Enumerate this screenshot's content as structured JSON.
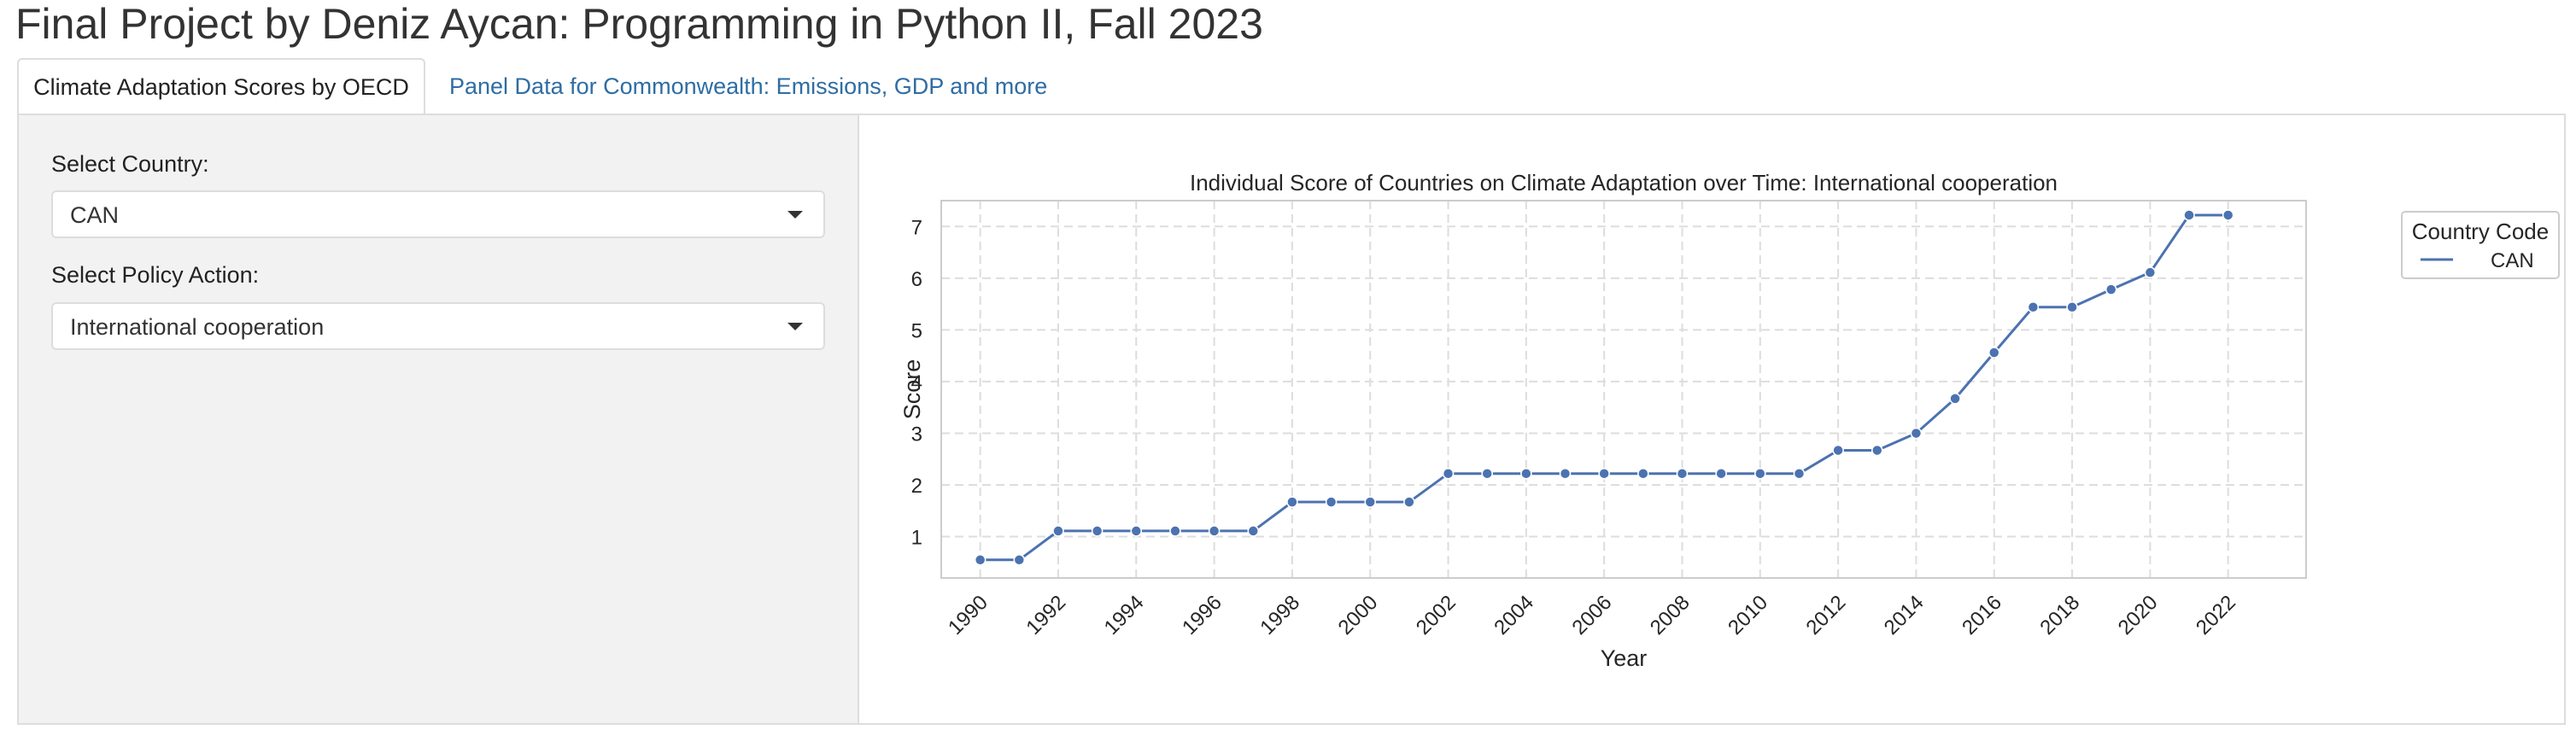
{
  "page": {
    "title": "Final Project by Deniz Aycan: Programming in Python II, Fall 2023"
  },
  "tabs": [
    {
      "label": "Climate Adaptation Scores by OECD",
      "active": true
    },
    {
      "label": "Panel Data for Commonwealth: Emissions, GDP and more",
      "active": false
    }
  ],
  "sidebar": {
    "country": {
      "label": "Select Country:",
      "value": "CAN"
    },
    "policy": {
      "label": "Select Policy Action:",
      "value": "International cooperation"
    }
  },
  "chart_data": {
    "type": "line",
    "title": "Individual Score of Countries on Climate Adaptation over Time: International cooperation",
    "xlabel": "Year",
    "ylabel": "Score",
    "xlim": [
      1989,
      2024
    ],
    "ylim": [
      0.2,
      7.5
    ],
    "x_ticks": [
      1990,
      1992,
      1994,
      1996,
      1998,
      2000,
      2002,
      2004,
      2006,
      2008,
      2010,
      2012,
      2014,
      2016,
      2018,
      2020,
      2022
    ],
    "y_ticks": [
      1,
      2,
      3,
      4,
      5,
      6,
      7
    ],
    "grid": true,
    "legend": {
      "title": "Country Code",
      "placement": "outside-top-right"
    },
    "series": [
      {
        "name": "CAN",
        "color": "#4c72b0",
        "x": [
          1990,
          1991,
          1992,
          1993,
          1994,
          1995,
          1996,
          1997,
          1998,
          1999,
          2000,
          2001,
          2002,
          2003,
          2004,
          2005,
          2006,
          2007,
          2008,
          2009,
          2010,
          2011,
          2012,
          2013,
          2014,
          2015,
          2016,
          2017,
          2018,
          2019,
          2020,
          2021,
          2022
        ],
        "y": [
          0.55,
          0.55,
          1.11,
          1.11,
          1.11,
          1.11,
          1.11,
          1.11,
          1.67,
          1.67,
          1.67,
          1.67,
          2.22,
          2.22,
          2.22,
          2.22,
          2.22,
          2.22,
          2.22,
          2.22,
          2.22,
          2.22,
          2.67,
          2.67,
          3.0,
          3.67,
          4.56,
          5.44,
          5.44,
          5.78,
          6.11,
          7.22,
          7.22
        ]
      }
    ]
  }
}
